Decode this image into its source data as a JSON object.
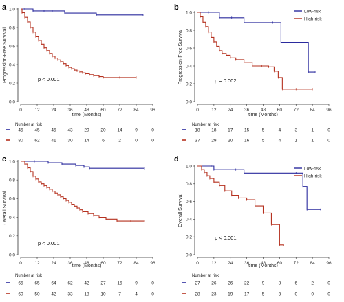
{
  "colors": {
    "low": "#2b2b9e",
    "high": "#b5311f"
  },
  "chart_data": [
    {
      "type": "line",
      "panel": "a",
      "ylabel": "Progression-Free Survival",
      "xlabel": "time (Months)",
      "x_ticks": [
        0,
        12,
        24,
        36,
        48,
        60,
        72,
        84,
        96
      ],
      "y_ticks": [
        "0.0",
        "0.2",
        "0.4",
        "0.6",
        "0.8",
        "1.0"
      ],
      "xlim": [
        0,
        96
      ],
      "ylim": [
        0,
        1
      ],
      "pvalue": "p < 0.001",
      "legend": null,
      "risk_table_title": "Number at risk",
      "series": [
        {
          "group": "low",
          "risk": [
            45,
            45,
            45,
            43,
            29,
            20,
            14,
            9,
            0
          ],
          "x": [
            0,
            3,
            9,
            17,
            23,
            32,
            55,
            89
          ],
          "y": [
            1.0,
            1.0,
            0.978,
            0.978,
            0.978,
            0.955,
            0.935,
            0.935
          ]
        },
        {
          "group": "high",
          "risk": [
            80,
            62,
            41,
            30,
            14,
            6,
            2,
            0,
            0
          ],
          "x": [
            0,
            1,
            3,
            5,
            7,
            9,
            11,
            13,
            15,
            17,
            19,
            21,
            23,
            25,
            27,
            29,
            31,
            33,
            35,
            37,
            39,
            41,
            43,
            45,
            47,
            50,
            53,
            57,
            60,
            72,
            84
          ],
          "y": [
            1.0,
            0.96,
            0.91,
            0.86,
            0.8,
            0.75,
            0.7,
            0.66,
            0.62,
            0.58,
            0.55,
            0.52,
            0.49,
            0.47,
            0.45,
            0.43,
            0.41,
            0.39,
            0.37,
            0.355,
            0.34,
            0.33,
            0.32,
            0.31,
            0.3,
            0.29,
            0.28,
            0.27,
            0.26,
            0.26,
            0.26
          ]
        }
      ]
    },
    {
      "type": "line",
      "panel": "b",
      "ylabel": "Progression-Free Survival",
      "xlabel": "time (Months)",
      "x_ticks": [
        0,
        12,
        24,
        36,
        48,
        60,
        72,
        84,
        96
      ],
      "y_ticks": [
        "0.0",
        "0.2",
        "0.4",
        "0.6",
        "0.8",
        "1.0"
      ],
      "xlim": [
        0,
        96
      ],
      "ylim": [
        0,
        1
      ],
      "pvalue": "p = 0.002",
      "legend": [
        "Low-risk",
        "High-risk"
      ],
      "risk_table_title": "Number at risk",
      "series": [
        {
          "group": "low",
          "risk": [
            18,
            18,
            17,
            15,
            5,
            4,
            3,
            1,
            0
          ],
          "x": [
            0,
            8,
            16,
            25,
            34,
            55,
            61,
            81,
            86
          ],
          "y": [
            1.0,
            1.0,
            0.94,
            0.94,
            0.885,
            0.885,
            0.665,
            0.33,
            0.33
          ]
        },
        {
          "group": "high",
          "risk": [
            37,
            29,
            20,
            16,
            5,
            4,
            1,
            1,
            0
          ],
          "x": [
            0,
            2,
            4,
            6,
            8,
            10,
            12,
            14,
            16,
            18,
            21,
            24,
            28,
            34,
            40,
            47,
            52,
            56,
            59,
            62,
            72,
            84
          ],
          "y": [
            1.0,
            0.95,
            0.89,
            0.84,
            0.78,
            0.72,
            0.67,
            0.62,
            0.57,
            0.54,
            0.52,
            0.49,
            0.47,
            0.44,
            0.4,
            0.4,
            0.39,
            0.34,
            0.27,
            0.14,
            0.14,
            0.14
          ]
        }
      ]
    },
    {
      "type": "line",
      "panel": "c",
      "ylabel": "Overall Survival",
      "xlabel": "time (Months)",
      "x_ticks": [
        0,
        12,
        24,
        36,
        48,
        60,
        72,
        84,
        96
      ],
      "y_ticks": [
        "0.0",
        "0.2",
        "0.4",
        "0.6",
        "0.8",
        "1.0"
      ],
      "xlim": [
        0,
        96
      ],
      "ylim": [
        0,
        1
      ],
      "pvalue": "p < 0.001",
      "legend": null,
      "risk_table_title": "Number at risk",
      "series": [
        {
          "group": "low",
          "risk": [
            65,
            65,
            64,
            62,
            42,
            27,
            15,
            9,
            0
          ],
          "x": [
            0,
            10,
            20,
            30,
            40,
            46,
            50,
            90
          ],
          "y": [
            1.0,
            1.0,
            0.985,
            0.97,
            0.955,
            0.94,
            0.925,
            0.925
          ]
        },
        {
          "group": "high",
          "risk": [
            60,
            50,
            42,
            33,
            18,
            10,
            7,
            4,
            0
          ],
          "x": [
            0,
            3,
            5,
            7,
            9,
            11,
            13,
            15,
            17,
            19,
            21,
            23,
            25,
            27,
            29,
            31,
            33,
            35,
            37,
            39,
            41,
            43,
            45,
            49,
            53,
            57,
            62,
            70,
            80,
            90
          ],
          "y": [
            1.0,
            0.97,
            0.93,
            0.89,
            0.84,
            0.81,
            0.78,
            0.76,
            0.74,
            0.72,
            0.7,
            0.68,
            0.66,
            0.64,
            0.62,
            0.6,
            0.58,
            0.56,
            0.54,
            0.52,
            0.5,
            0.48,
            0.46,
            0.44,
            0.42,
            0.4,
            0.38,
            0.36,
            0.36,
            0.36
          ]
        }
      ]
    },
    {
      "type": "line",
      "panel": "d",
      "ylabel": "Overall Survival",
      "xlabel": "time (Months)",
      "x_ticks": [
        0,
        12,
        24,
        36,
        48,
        60,
        72,
        84,
        96
      ],
      "y_ticks": [
        "0.0",
        "0.2",
        "0.4",
        "0.6",
        "0.8",
        "1.0"
      ],
      "xlim": [
        0,
        96
      ],
      "ylim": [
        0,
        1
      ],
      "pvalue": "p < 0.001",
      "legend": [
        "Low-risk",
        "High-risk"
      ],
      "risk_table_title": "Number at risk",
      "series": [
        {
          "group": "low",
          "risk": [
            27,
            26,
            26,
            22,
            9,
            8,
            6,
            2,
            0
          ],
          "x": [
            0,
            10,
            12,
            28,
            34,
            72,
            77,
            80,
            90
          ],
          "y": [
            1.0,
            1.0,
            0.96,
            0.96,
            0.92,
            0.92,
            0.77,
            0.51,
            0.51
          ]
        },
        {
          "group": "high",
          "risk": [
            28,
            23,
            19,
            17,
            5,
            3,
            0,
            0,
            0
          ],
          "x": [
            0,
            3,
            5,
            7,
            9,
            12,
            16,
            20,
            25,
            30,
            36,
            42,
            48,
            54,
            60,
            63
          ],
          "y": [
            1.0,
            0.96,
            0.93,
            0.89,
            0.86,
            0.82,
            0.78,
            0.72,
            0.67,
            0.64,
            0.62,
            0.55,
            0.47,
            0.34,
            0.11,
            0.11
          ]
        }
      ]
    }
  ]
}
